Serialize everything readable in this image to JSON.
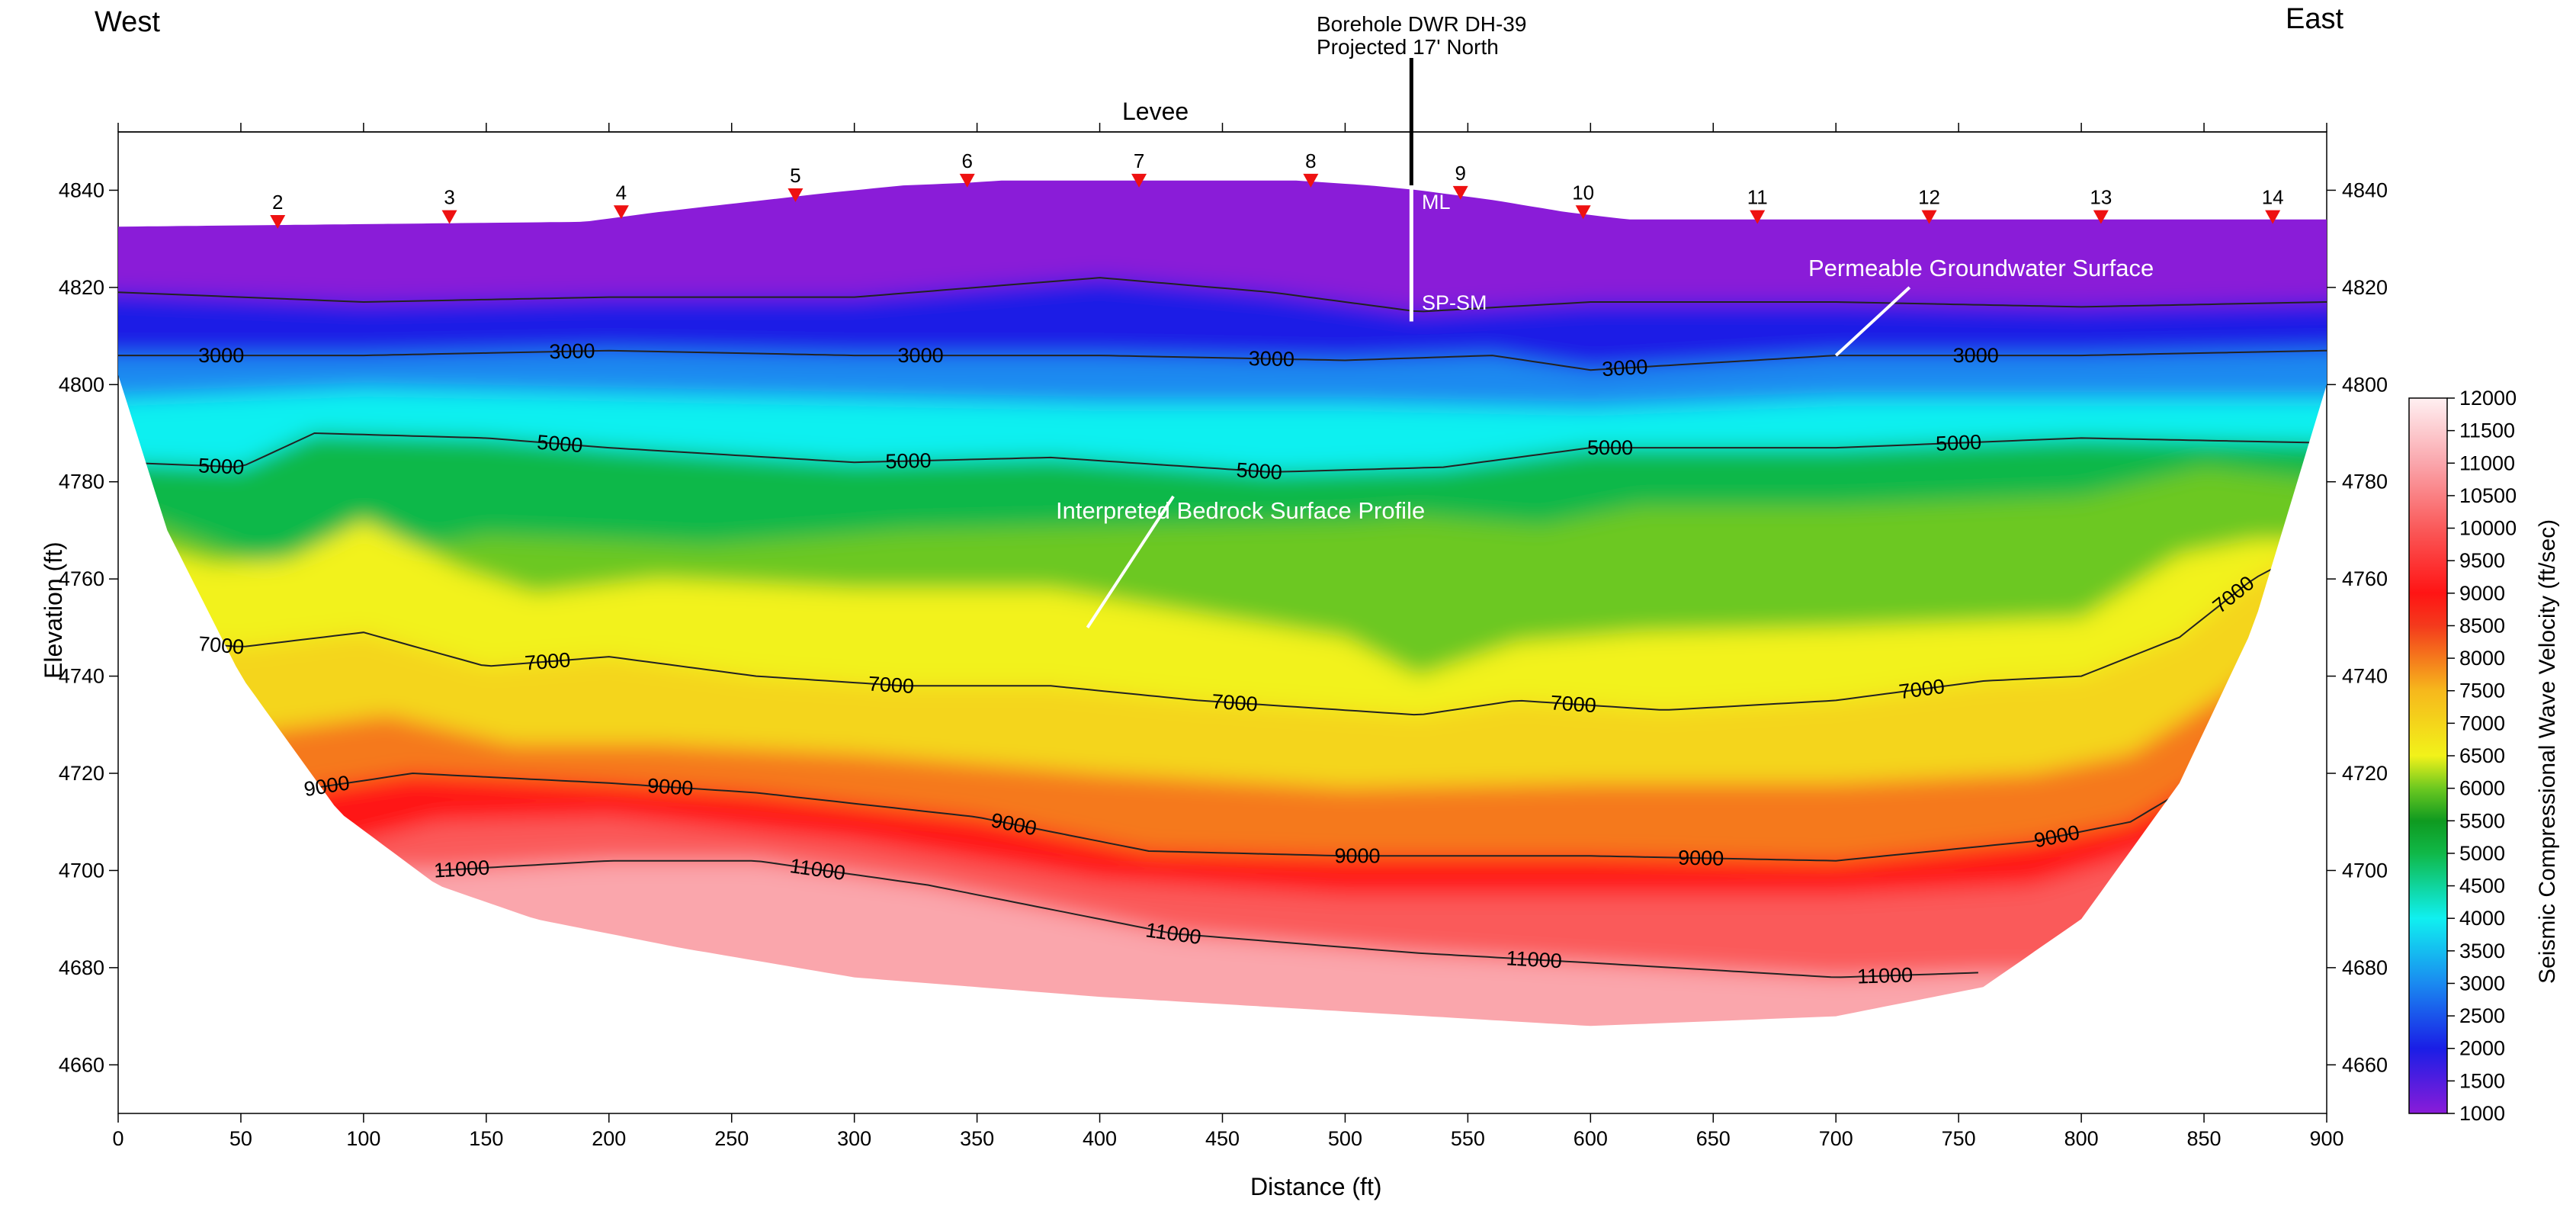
{
  "chart_data": {
    "type": "heatmap",
    "subtype": "seismic refraction velocity cross-section",
    "orientation": {
      "left": "West",
      "right": "East"
    },
    "borehole": {
      "name": "Borehole DWR DH-39",
      "note": "Projected 17' North",
      "x": 527,
      "top_elevation": 4841,
      "bottom_elevation": 4813,
      "soil_labels": [
        "ML",
        "SP-SM"
      ]
    },
    "top_label": "Levee",
    "xlabel": "Distance (ft)",
    "ylabel": "Elevation (ft)",
    "colorbar_label": "Seismic Compressional Wave Velocity (ft/sec)",
    "xlim": [
      0,
      900
    ],
    "ylim": [
      4650,
      4852
    ],
    "x_ticks": [
      0,
      50,
      100,
      150,
      200,
      250,
      300,
      350,
      400,
      450,
      500,
      550,
      600,
      650,
      700,
      750,
      800,
      850,
      900
    ],
    "y_ticks": [
      4660,
      4680,
      4700,
      4720,
      4740,
      4760,
      4780,
      4800,
      4820,
      4840
    ],
    "colorbar_ticks": [
      1000,
      1500,
      2000,
      2500,
      3000,
      3500,
      4000,
      4500,
      5000,
      5500,
      6000,
      6500,
      7000,
      7500,
      8000,
      8500,
      9000,
      9500,
      10000,
      10500,
      11000,
      11500,
      12000
    ],
    "colormap": [
      {
        "v": 1000,
        "color": "#8a1cd8"
      },
      {
        "v": 2000,
        "color": "#1a1ee6"
      },
      {
        "v": 3000,
        "color": "#1a8af0"
      },
      {
        "v": 4000,
        "color": "#10f0f0"
      },
      {
        "v": 5000,
        "color": "#10b848"
      },
      {
        "v": 5500,
        "color": "#0f9a20"
      },
      {
        "v": 6000,
        "color": "#6cc820"
      },
      {
        "v": 6500,
        "color": "#f2f21a"
      },
      {
        "v": 7500,
        "color": "#f6b81c"
      },
      {
        "v": 8500,
        "color": "#f43a1c"
      },
      {
        "v": 9000,
        "color": "#ff1414"
      },
      {
        "v": 10000,
        "color": "#fa5a5a"
      },
      {
        "v": 11000,
        "color": "#faa6ac"
      },
      {
        "v": 12000,
        "color": "#fff0f2"
      }
    ],
    "geophones": [
      {
        "label": "2",
        "x": 65,
        "elev": 4833
      },
      {
        "label": "3",
        "x": 135,
        "elev": 4834
      },
      {
        "label": "4",
        "x": 205,
        "elev": 4835
      },
      {
        "label": "5",
        "x": 276,
        "elev": 4838.5
      },
      {
        "label": "6",
        "x": 346,
        "elev": 4841.5
      },
      {
        "label": "7",
        "x": 416,
        "elev": 4841.5
      },
      {
        "label": "8",
        "x": 486,
        "elev": 4841.5
      },
      {
        "label": "9",
        "x": 547,
        "elev": 4839
      },
      {
        "label": "10",
        "x": 597,
        "elev": 4835
      },
      {
        "label": "11",
        "x": 668,
        "elev": 4834
      },
      {
        "label": "12",
        "x": 738,
        "elev": 4834
      },
      {
        "label": "13",
        "x": 808,
        "elev": 4834
      },
      {
        "label": "14",
        "x": 878,
        "elev": 4834
      }
    ],
    "surface": {
      "x": [
        0,
        190,
        220,
        255,
        290,
        320,
        345,
        360,
        480,
        510,
        530,
        560,
        590,
        615,
        900
      ],
      "elev": [
        4832.5,
        4833.5,
        4835.5,
        4837.5,
        4839.5,
        4841,
        4841.5,
        4842,
        4842,
        4841,
        4840,
        4838,
        4835.5,
        4834,
        4834
      ]
    },
    "bottom": {
      "x": [
        0,
        20,
        50,
        90,
        130,
        170,
        230,
        300,
        400,
        500,
        600,
        700,
        760,
        800,
        840,
        870,
        900
      ],
      "elev": [
        4802,
        4770,
        4740,
        4712,
        4697,
        4690,
        4684,
        4678,
        4674,
        4671,
        4668,
        4670,
        4676,
        4690,
        4718,
        4750,
        4800
      ]
    },
    "layers": [
      {
        "v": 2000,
        "x": [
          0,
          100,
          200,
          300,
          400,
          470,
          530,
          600,
          700,
          800,
          900
        ],
        "elev": [
          4819,
          4817,
          4818,
          4818,
          4822,
          4819,
          4815,
          4817,
          4817,
          4816,
          4817
        ]
      },
      {
        "v": 3000,
        "x": [
          0,
          100,
          200,
          300,
          400,
          500,
          560,
          600,
          700,
          800,
          900
        ],
        "elev": [
          4806,
          4806,
          4807,
          4806,
          4806,
          4805,
          4806,
          4803,
          4806,
          4806,
          4807
        ]
      },
      {
        "v": 4000,
        "x": [
          0,
          100,
          200,
          300,
          400,
          500,
          600,
          700,
          800,
          900
        ],
        "elev": [
          4797,
          4799,
          4798,
          4797,
          4796,
          4796,
          4795,
          4797,
          4797,
          4797
        ]
      },
      {
        "v": 5000,
        "x": [
          0,
          50,
          80,
          150,
          200,
          300,
          380,
          470,
          540,
          600,
          700,
          800,
          900
        ],
        "elev": [
          4784,
          4783,
          4790,
          4789,
          4787,
          4784,
          4785,
          4782,
          4783,
          4787,
          4787,
          4789,
          4788
        ]
      },
      {
        "v": 6000,
        "x": [
          0,
          60,
          90,
          130,
          150,
          200,
          240,
          320,
          400,
          500,
          530,
          580,
          620,
          700,
          800,
          850,
          900
        ],
        "elev": [
          4774,
          4763,
          4769,
          4767,
          4769,
          4768,
          4767,
          4770,
          4771,
          4772,
          4773,
          4771,
          4775,
          4775,
          4777,
          4783,
          4780
        ]
      },
      {
        "v": 6500,
        "x": [
          0,
          40,
          70,
          100,
          140,
          170,
          220,
          300,
          380,
          450,
          500,
          530,
          570,
          620,
          700,
          800,
          840,
          870,
          900
        ],
        "elev": [
          4768,
          4763,
          4764,
          4772,
          4762,
          4757,
          4760,
          4758,
          4758,
          4752,
          4748,
          4740,
          4747,
          4749,
          4750,
          4752,
          4765,
          4768,
          4768
        ]
      },
      {
        "v": 7000,
        "x": [
          0,
          50,
          100,
          150,
          200,
          260,
          320,
          380,
          440,
          500,
          530,
          570,
          630,
          700,
          760,
          800,
          840,
          870,
          900
        ],
        "elev": [
          4748,
          4746,
          4749,
          4742,
          4744,
          4740,
          4738,
          4738,
          4735,
          4733,
          4732,
          4735,
          4733,
          4735,
          4739,
          4740,
          4748,
          4760,
          4768
        ]
      },
      {
        "v": 8000,
        "x": [
          0,
          50,
          110,
          160,
          220,
          300,
          400,
          500,
          600,
          700,
          780,
          820,
          860,
          900
        ],
        "elev": [
          4730,
          4728,
          4732,
          4726,
          4726,
          4724,
          4720,
          4717,
          4718,
          4718,
          4720,
          4724,
          4737,
          4755
        ]
      },
      {
        "v": 9000,
        "x": [
          40,
          80,
          120,
          200,
          260,
          350,
          420,
          500,
          600,
          700,
          780,
          820,
          860,
          900
        ],
        "elev": [
          4712,
          4717,
          4720,
          4718,
          4716,
          4711,
          4704,
          4703,
          4703,
          4702,
          4706,
          4710,
          4722,
          4745
        ]
      },
      {
        "v": 10000,
        "x": [
          90,
          130,
          200,
          300,
          400,
          500,
          600,
          700,
          780,
          840,
          880
        ],
        "elev": [
          4705,
          4710,
          4711,
          4706,
          4698,
          4695,
          4695,
          4695,
          4697,
          4706,
          4722
        ]
      },
      {
        "v": 11000,
        "x": [
          130,
          200,
          260,
          330,
          430,
          530,
          600,
          700,
          760
        ],
        "elev": [
          4700,
          4702,
          4702,
          4697,
          4687,
          4683,
          4681,
          4678,
          4679
        ]
      }
    ],
    "contours": [
      {
        "level": 2000,
        "labeled": false,
        "x": [
          0,
          100,
          200,
          300,
          400,
          470,
          530,
          600,
          700,
          800,
          900
        ],
        "elev": [
          4819,
          4817,
          4818,
          4818,
          4822,
          4819,
          4815,
          4817,
          4817,
          4816,
          4817
        ],
        "labels": []
      },
      {
        "level": 3000,
        "labeled": true,
        "x": [
          0,
          100,
          200,
          300,
          400,
          500,
          560,
          600,
          700,
          800,
          900
        ],
        "elev": [
          4806,
          4806,
          4807,
          4806,
          4806,
          4805,
          4806,
          4803,
          4806,
          4806,
          4807
        ],
        "labels": [
          42,
          185,
          327,
          470,
          614,
          757
        ]
      },
      {
        "level": 5000,
        "labeled": true,
        "x": [
          0,
          50,
          80,
          150,
          200,
          300,
          380,
          470,
          540,
          600,
          700,
          800,
          900
        ],
        "elev": [
          4784,
          4783,
          4790,
          4789,
          4787,
          4784,
          4785,
          4782,
          4783,
          4787,
          4787,
          4789,
          4788
        ],
        "labels": [
          42,
          180,
          322,
          465,
          608,
          750
        ]
      },
      {
        "level": 7000,
        "labeled": true,
        "x": [
          0,
          50,
          100,
          150,
          200,
          260,
          320,
          380,
          440,
          500,
          530,
          570,
          630,
          700,
          760,
          800,
          840,
          870,
          900
        ],
        "elev": [
          4748,
          4746,
          4749,
          4742,
          4744,
          4740,
          4738,
          4738,
          4735,
          4733,
          4732,
          4735,
          4733,
          4735,
          4739,
          4740,
          4748,
          4760,
          4768
        ],
        "labels": [
          42,
          175,
          315,
          455,
          593,
          735,
          862
        ]
      },
      {
        "level": 9000,
        "labeled": true,
        "x": [
          40,
          80,
          120,
          200,
          260,
          350,
          420,
          500,
          600,
          700,
          780,
          820,
          860,
          900
        ],
        "elev": [
          4712,
          4717,
          4720,
          4718,
          4716,
          4711,
          4704,
          4703,
          4703,
          4702,
          4706,
          4710,
          4722,
          4745
        ],
        "labels": [
          85,
          225,
          365,
          505,
          645,
          790
        ]
      },
      {
        "level": 11000,
        "labeled": true,
        "x": [
          130,
          200,
          260,
          330,
          430,
          530,
          600,
          700,
          760
        ],
        "elev": [
          4700,
          4702,
          4702,
          4697,
          4687,
          4683,
          4681,
          4678,
          4679
        ],
        "labels": [
          140,
          285,
          430,
          577,
          720
        ]
      }
    ],
    "annotations": [
      {
        "text": "Permeable Groundwater Surface",
        "from": [
          700,
          4806
        ],
        "to": [
          730,
          4820
        ]
      },
      {
        "text": "Interpreted Bedrock Surface Profile",
        "from": [
          395,
          4750
        ],
        "to": [
          430,
          4777
        ]
      }
    ]
  },
  "header": {
    "west": "West",
    "east": "East",
    "borehole_line1": "Borehole DWR DH-39",
    "borehole_line2": "Projected 17' North",
    "levee": "Levee",
    "soil_ml": "ML",
    "soil_spsm": "SP-SM",
    "annotation_gw": "Permeable Groundwater Surface",
    "annotation_bedrock": "Interpreted Bedrock Surface Profile"
  },
  "axes": {
    "xlabel": "Distance (ft)",
    "ylabel": "Elevation (ft)",
    "colorbar_label": "Seismic Compressional Wave Velocity (ft/sec)"
  }
}
